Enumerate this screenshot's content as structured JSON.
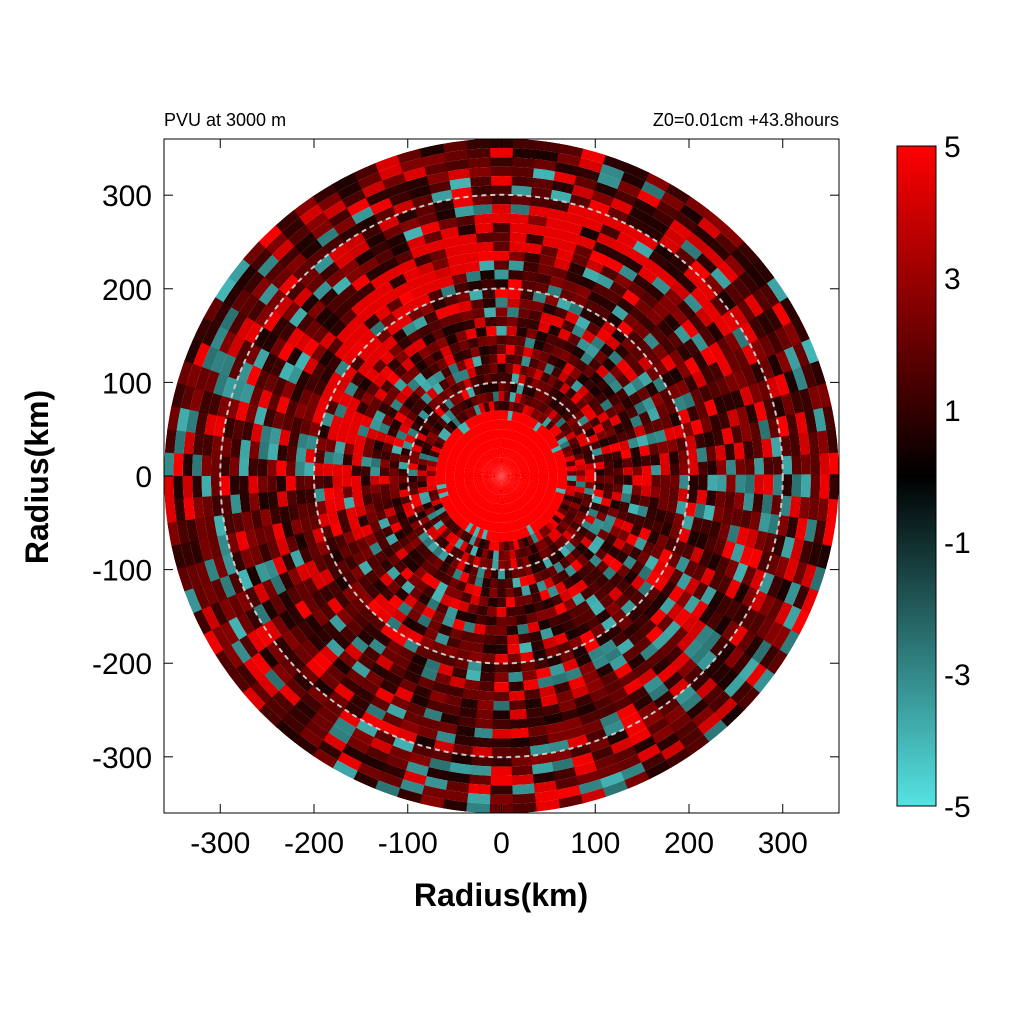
{
  "chart_data": {
    "type": "heatmap",
    "title_left": "PVU at  3000 m",
    "title_right": "Z0=0.01cm  +43.8hours",
    "xlabel": "Radius(km)",
    "ylabel": "Radius(km)",
    "xlim": [
      -360,
      360
    ],
    "ylim": [
      -360,
      360
    ],
    "xticks": [
      -300,
      -200,
      -100,
      0,
      100,
      200,
      300
    ],
    "yticks": [
      -300,
      -200,
      -100,
      0,
      100,
      200,
      300
    ],
    "domain_radius_km": 360,
    "reference_circles_km": [
      100,
      200,
      300
    ],
    "colorbar": {
      "min": -5,
      "max": 5,
      "ticks": [
        5,
        3,
        1,
        -1,
        -3,
        -5
      ],
      "colors": {
        "low": "#55e3e3",
        "mid": "#000000",
        "high": "#ff0000"
      }
    },
    "features": [
      {
        "name": "core",
        "radius_km": 70,
        "value": 5
      },
      {
        "name": "background",
        "value": 1.5
      },
      {
        "name": "negative-patches",
        "value": -4
      }
    ]
  }
}
